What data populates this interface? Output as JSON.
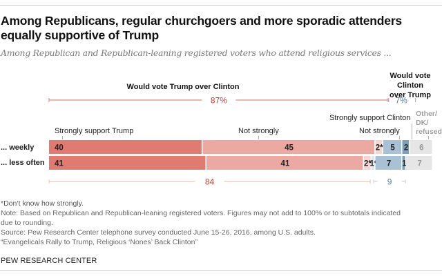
{
  "title": "Among Republicans, regular churchgoers and more sporadic attenders equally supportive of Trump",
  "subtitle": "Among Republican and Republican-leaning registered voters who attend religious services ...",
  "headers": {
    "trump": "Would vote Trump over Clinton",
    "clinton_line1": "Would vote Clinton",
    "clinton_line2": "over Trump"
  },
  "segment_labels": {
    "strongly_trump": "Strongly support Trump",
    "not_strongly_trump": "Not strongly",
    "strongly_clinton": "Strongly support Clinton",
    "not_strongly_clinton": "Not strongly",
    "other_line1": "Other/",
    "other_line2": "DK/",
    "other_line3": "refused"
  },
  "colors": {
    "trump_strong": "#e07b72",
    "trump_not": "#eba9a1",
    "trump_dk": "#f6d6d2",
    "clinton_dk": "#dde7ef",
    "clinton_strong": "#a9c1d4",
    "clinton_not": "#7f9fb9",
    "other": "#e6e6e6",
    "trump_text": "#c0442f",
    "clinton_text": "#5b7b97"
  },
  "chart_data": {
    "type": "bar",
    "orientation": "horizontal",
    "stacked": true,
    "title": "Among Republicans, regular churchgoers and more sporadic attenders equally supportive of Trump",
    "categories": [
      "... weekly",
      "... less often"
    ],
    "series": [
      {
        "name": "Strongly support Trump",
        "values": [
          40,
          41
        ],
        "labels": [
          "40",
          "41"
        ]
      },
      {
        "name": "Not strongly (Trump)",
        "values": [
          45,
          41
        ],
        "labels": [
          "45",
          "41"
        ]
      },
      {
        "name": "Don't know how strongly (Trump)",
        "values": [
          2,
          2
        ],
        "labels": [
          "2*",
          "2*"
        ]
      },
      {
        "name": "Don't know how strongly (Clinton)",
        "values": [
          0,
          1
        ],
        "labels": [
          "",
          "1*"
        ]
      },
      {
        "name": "Strongly support Clinton",
        "values": [
          5,
          7
        ],
        "labels": [
          "5",
          "7"
        ]
      },
      {
        "name": "Not strongly (Clinton)",
        "values": [
          2,
          1
        ],
        "labels": [
          "2",
          "1"
        ]
      },
      {
        "name": "Other/DK/refused",
        "values": [
          6,
          7
        ],
        "labels": [
          "6",
          "7"
        ]
      }
    ],
    "subtotals": {
      "weekly": {
        "trump": "87%",
        "clinton": "7%"
      },
      "less_often": {
        "trump": "84",
        "clinton": "9"
      }
    },
    "xlim": [
      0,
      100
    ]
  },
  "notes": {
    "footnote": "*Don’t know how strongly.",
    "note_line1": "Note: Based on Republican and Republican-leaning registered voters. Figures may not add to 100% or to subtotals indicated",
    "note_line2": "due to rounding.",
    "source": "Source: Pew Research Center telephone survey conducted June 15-26, 2016, among U.S. adults.",
    "report": "“Evangelicals Rally to Trump, Religious ‘Nones’ Back Clinton”"
  },
  "footer": "PEW RESEARCH CENTER"
}
